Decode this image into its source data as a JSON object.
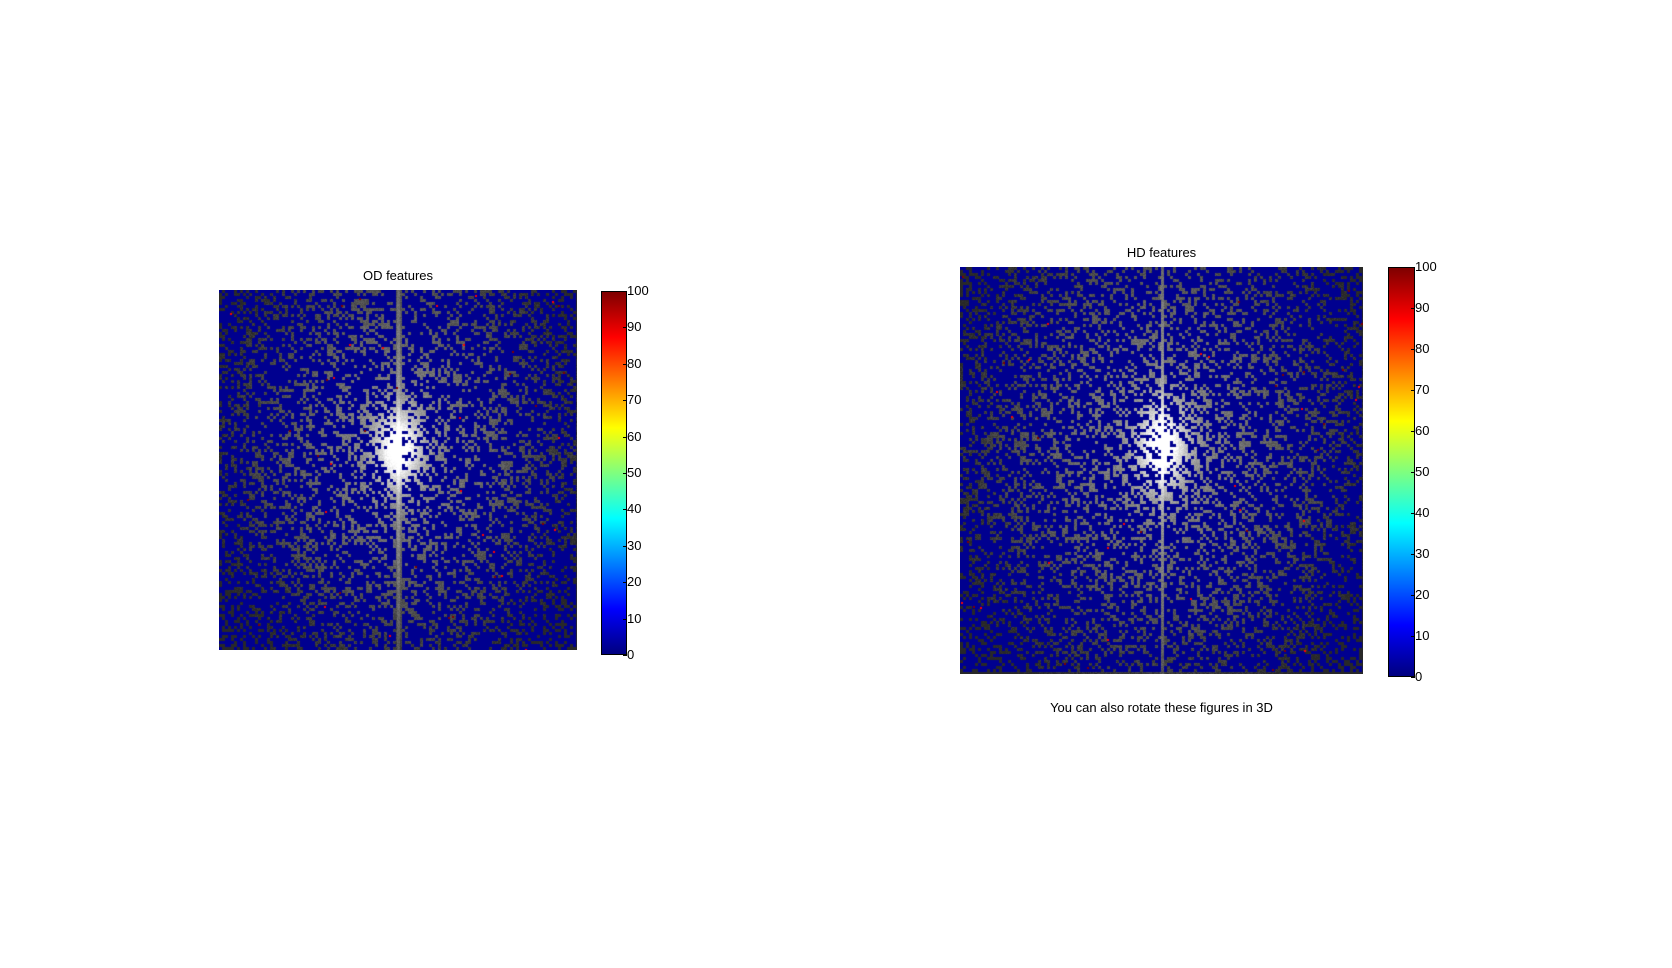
{
  "chart_data": [
    {
      "type": "heatmap",
      "title": "OD features",
      "colormap": "jet",
      "background": "grayscale spectrum image",
      "colorbar": {
        "min": 0,
        "max": 100,
        "ticks": [
          "0",
          "10",
          "20",
          "30",
          "40",
          "50",
          "60",
          "70",
          "80",
          "90",
          "100"
        ]
      },
      "dominant_value": 0,
      "occasional_values": [
        90,
        100
      ]
    },
    {
      "type": "heatmap",
      "title": "HD features",
      "colormap": "jet",
      "background": "grayscale spectrum image",
      "colorbar": {
        "min": 0,
        "max": 100,
        "ticks": [
          "0",
          "10",
          "20",
          "30",
          "40",
          "50",
          "60",
          "70",
          "80",
          "90",
          "100"
        ]
      },
      "dominant_value": 0,
      "occasional_values": [
        90,
        100
      ]
    }
  ],
  "caption": "You can also rotate these figures in 3D",
  "colors": {
    "marker": "#00008f",
    "jet": [
      "#00007f",
      "#0000ff",
      "#007fff",
      "#00ffff",
      "#7fff7f",
      "#ffff00",
      "#ff7f00",
      "#ff0000",
      "#7f0000"
    ]
  }
}
